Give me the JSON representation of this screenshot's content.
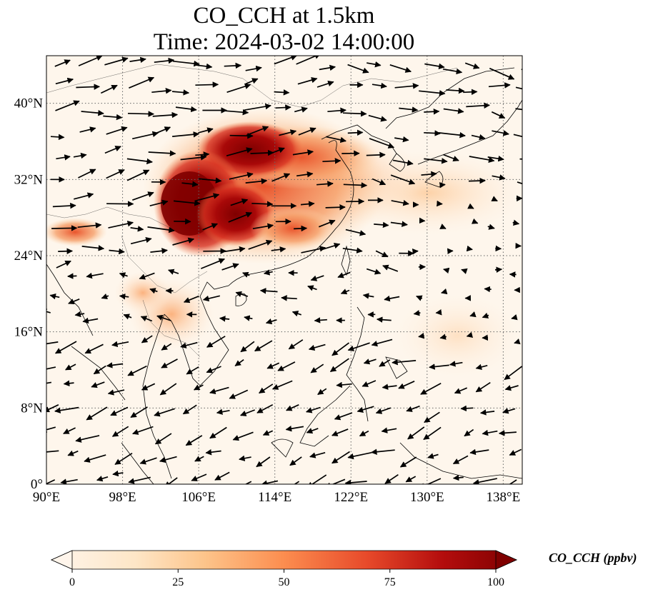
{
  "title": {
    "line1": "CO_CCH at 1.5km",
    "line2": "Time: 2024-03-02 14:00:00"
  },
  "map": {
    "lon_range": [
      90,
      140
    ],
    "lat_range": [
      0,
      45
    ],
    "x_ticks": [
      "90°E",
      "98°E",
      "106°E",
      "114°E",
      "122°E",
      "130°E",
      "138°E"
    ],
    "x_tick_values": [
      90,
      98,
      106,
      114,
      122,
      130,
      138
    ],
    "y_ticks": [
      "0°",
      "8°N",
      "16°N",
      "24°N",
      "32°N",
      "40°N"
    ],
    "y_tick_values": [
      0,
      8,
      16,
      24,
      32,
      40
    ],
    "gridlines": true,
    "vectors": "wind-arrows"
  },
  "colorbar": {
    "title": "CO_CCH (ppbv)",
    "tick_labels": [
      "0",
      "25",
      "50",
      "75",
      "100"
    ],
    "tick_values": [
      0,
      25,
      50,
      75,
      100
    ],
    "range": [
      0,
      100
    ],
    "extend": "both",
    "colormap": [
      "#fff5eb",
      "#fdd8a5",
      "#fdae6b",
      "#f16913",
      "#d7301f",
      "#990000",
      "#7f0000"
    ]
  }
}
